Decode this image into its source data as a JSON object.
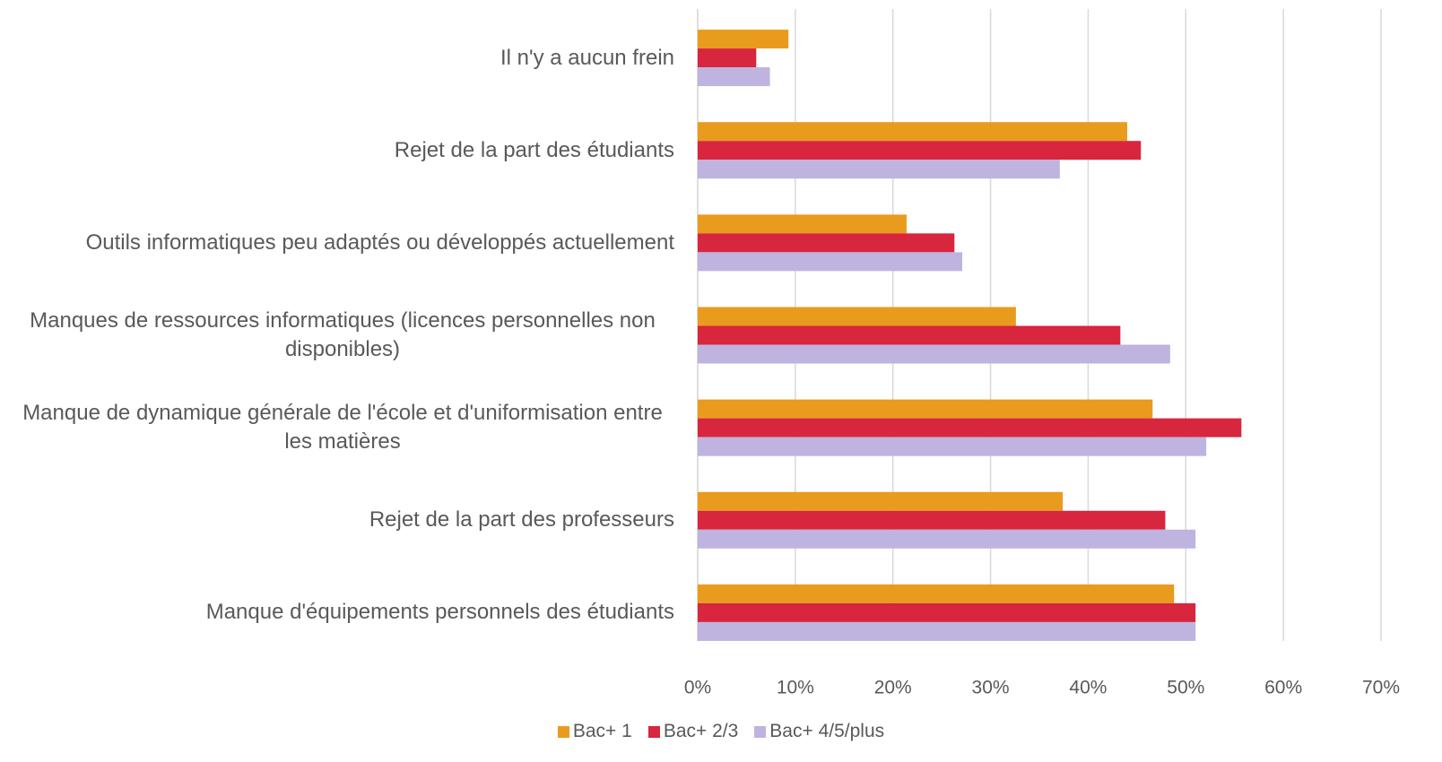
{
  "chart_data": {
    "type": "bar",
    "orientation": "horizontal",
    "categories": [
      "Il n'y a aucun frein",
      "Rejet de la part des étudiants",
      "Outils informatiques peu adaptés ou développés actuellement",
      "Manques de ressources informatiques (licences personnelles non disponibles)",
      "Manque de dynamique générale de l'école et d'uniformisation entre les matières",
      "Rejet de la part des professeurs",
      "Manque d'équipements personnels des étudiants"
    ],
    "series": [
      {
        "name": "Bac+ 1",
        "color": "#e99b1e",
        "values": [
          9.3,
          44.0,
          21.4,
          32.6,
          46.6,
          37.4,
          48.8
        ]
      },
      {
        "name": "Bac+ 2/3",
        "color": "#d7263d",
        "values": [
          6.0,
          45.4,
          26.3,
          43.3,
          55.7,
          47.9,
          51.0
        ]
      },
      {
        "name": "Bac+ 4/5/plus",
        "color": "#bfb3e0",
        "values": [
          7.4,
          37.1,
          27.1,
          48.4,
          52.1,
          51.0,
          51.0
        ]
      }
    ],
    "xlim": [
      0,
      70
    ],
    "xticks": [
      {
        "value": 0,
        "label": "0%"
      },
      {
        "value": 10,
        "label": "10%"
      },
      {
        "value": 20,
        "label": "20%"
      },
      {
        "value": 30,
        "label": "30%"
      },
      {
        "value": 40,
        "label": "40%"
      },
      {
        "value": 50,
        "label": "50%"
      },
      {
        "value": 60,
        "label": "60%"
      },
      {
        "value": 70,
        "label": "70%"
      }
    ],
    "grid": true,
    "legend": "bottom"
  }
}
